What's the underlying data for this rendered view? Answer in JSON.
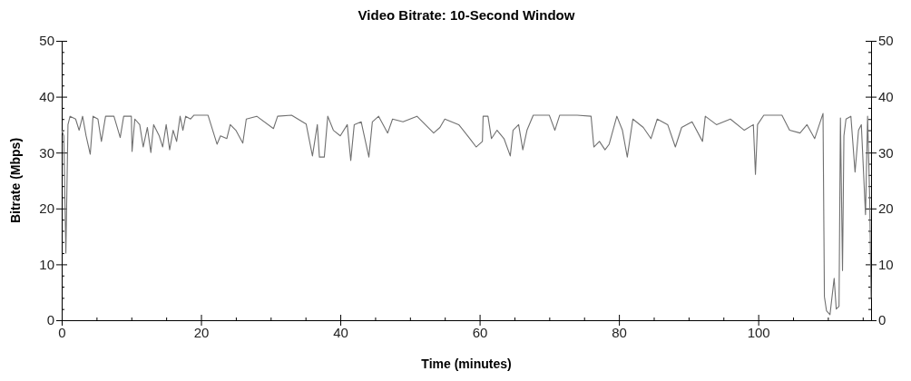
{
  "chart_data": {
    "type": "line",
    "title": "Video Bitrate: 10-Second Window",
    "xlabel": "Time (minutes)",
    "ylabel": "Bitrate (Mbps)",
    "xlim": [
      0,
      116.2
    ],
    "xticks": [
      0,
      {
        "value": 5,
        "label": null
      },
      {
        "value": 10,
        "label": null
      },
      {
        "value": 15,
        "label": null
      },
      20,
      {
        "value": 25,
        "label": null
      },
      {
        "value": 30,
        "label": null
      },
      {
        "value": 35,
        "label": null
      },
      40,
      {
        "value": 45,
        "label": null
      },
      {
        "value": 50,
        "label": null
      },
      {
        "value": 55,
        "label": null
      },
      60,
      {
        "value": 65,
        "label": null
      },
      {
        "value": 70,
        "label": null
      },
      {
        "value": 75,
        "label": null
      },
      80,
      {
        "value": 85,
        "label": null
      },
      {
        "value": 90,
        "label": null
      },
      {
        "value": 95,
        "label": null
      },
      100,
      {
        "value": 105,
        "label": null
      },
      {
        "value": 110,
        "label": null
      },
      {
        "value": 115,
        "label": null
      }
    ],
    "ylim": [
      0,
      50
    ],
    "yticks": [
      0,
      {
        "value": 2,
        "label": null
      },
      {
        "value": 4,
        "label": null
      },
      {
        "value": 6,
        "label": null
      },
      {
        "value": 8,
        "label": null
      },
      10,
      {
        "value": 12,
        "label": null
      },
      {
        "value": 14,
        "label": null
      },
      {
        "value": 16,
        "label": null
      },
      {
        "value": 18,
        "label": null
      },
      20,
      {
        "value": 22,
        "label": null
      },
      {
        "value": 24,
        "label": null
      },
      {
        "value": 26,
        "label": null
      },
      {
        "value": 28,
        "label": null
      },
      30,
      {
        "value": 32,
        "label": null
      },
      {
        "value": 34,
        "label": null
      },
      {
        "value": 36,
        "label": null
      },
      {
        "value": 38,
        "label": null
      },
      40,
      {
        "value": 42,
        "label": null
      },
      {
        "value": 44,
        "label": null
      },
      {
        "value": 46,
        "label": null
      },
      {
        "value": 48,
        "label": null
      },
      50
    ],
    "y2lim": [
      0,
      50
    ],
    "y2ticks": [
      0,
      {
        "value": 2,
        "label": null
      },
      {
        "value": 4,
        "label": null
      },
      {
        "value": 6,
        "label": null
      },
      {
        "value": 8,
        "label": null
      },
      10,
      {
        "value": 12,
        "label": null
      },
      {
        "value": 14,
        "label": null
      },
      {
        "value": 16,
        "label": null
      },
      {
        "value": 18,
        "label": null
      },
      20,
      {
        "value": 22,
        "label": null
      },
      {
        "value": 24,
        "label": null
      },
      {
        "value": 26,
        "label": null
      },
      {
        "value": 28,
        "label": null
      },
      30,
      {
        "value": 32,
        "label": null
      },
      {
        "value": 34,
        "label": null
      },
      {
        "value": 36,
        "label": null
      },
      {
        "value": 38,
        "label": null
      },
      40,
      {
        "value": 42,
        "label": null
      },
      {
        "value": 44,
        "label": null
      },
      {
        "value": 46,
        "label": null
      },
      {
        "value": 48,
        "label": null
      },
      50
    ],
    "grid": false,
    "marker": "none",
    "line_style": "solid",
    "series": [
      {
        "color": "#707070",
        "x": [
          0,
          0.3,
          0.6,
          0.9,
          1.2,
          2,
          2.5,
          3,
          3.5,
          4.1,
          4.5,
          5.2,
          5.7,
          6.3,
          7.5,
          8.4,
          8.9,
          10,
          10.1,
          10.5,
          11.2,
          11.7,
          12.3,
          12.8,
          13.2,
          14,
          14.5,
          15,
          15.5,
          16,
          16.5,
          17,
          17.4,
          17.8,
          18.5,
          19,
          21,
          22.3,
          22.8,
          23.7,
          24.2,
          25,
          26,
          26.5,
          28,
          30.4,
          31,
          33,
          35.1,
          36,
          36.7,
          37,
          37.7,
          38.2,
          39,
          40,
          41,
          41.5,
          42,
          43,
          44.1,
          44.6,
          45.5,
          46.8,
          47.5,
          49,
          51,
          53.4,
          54.3,
          55,
          57,
          58.6,
          59.5,
          60.4,
          60.5,
          61.2,
          61.7,
          62.5,
          63.5,
          64.4,
          64.8,
          65.6,
          66.2,
          66.8,
          67.7,
          70,
          70.8,
          71.5,
          74,
          76,
          76.4,
          77.2,
          78,
          78.6,
          79.7,
          80.5,
          81.2,
          82,
          83.5,
          84.6,
          85.5,
          87,
          88.1,
          89,
          90.5,
          92,
          92.4,
          94,
          96,
          98,
          99.3,
          99.6,
          99.9,
          100.8,
          103.4,
          104.5,
          106,
          107,
          108.1,
          109.3,
          109.5,
          109.8,
          110.3,
          110.9,
          111.2,
          111.6,
          111.8,
          112.1,
          112.3,
          112.6,
          113.3,
          113.9,
          114.4,
          114.8,
          115.4,
          115.7,
          116,
          116.2
        ],
        "values": [
          34,
          33,
          12,
          35,
          36.5,
          36,
          34,
          36.5,
          33,
          29.7,
          36.5,
          36,
          32,
          36.5,
          36.5,
          32.7,
          36.5,
          36.5,
          30.2,
          36,
          35,
          31,
          34.5,
          30,
          35,
          33,
          31,
          35,
          30.5,
          34,
          32,
          36.5,
          34,
          36.5,
          36,
          36.7,
          36.7,
          31.5,
          33,
          32.5,
          35,
          34,
          31.7,
          36,
          36.5,
          34.3,
          36.5,
          36.7,
          35.1,
          29.4,
          35,
          29.2,
          29.2,
          36.5,
          34,
          33,
          35,
          28.6,
          35,
          35.5,
          29.2,
          35.5,
          36.5,
          33.5,
          36,
          35.5,
          36.5,
          33.5,
          34.5,
          36,
          35,
          32.5,
          31,
          32,
          36.5,
          36.5,
          32.5,
          34,
          32.5,
          29.4,
          34,
          35,
          30.5,
          34,
          36.7,
          36.7,
          34,
          36.7,
          36.7,
          36.5,
          31,
          32,
          30.5,
          31.5,
          36.5,
          34,
          29.2,
          36,
          34.5,
          32.5,
          36,
          35,
          31,
          34.5,
          35.5,
          32,
          36.5,
          35,
          36,
          34,
          35,
          26.1,
          35,
          36.7,
          36.7,
          34,
          33.5,
          35,
          32.5,
          37,
          4.2,
          1.7,
          1,
          7.5,
          2,
          2.5,
          36.2,
          8.9,
          33,
          36,
          36.5,
          26.5,
          34,
          35,
          18.9,
          36.5,
          22,
          4
        ]
      }
    ]
  }
}
